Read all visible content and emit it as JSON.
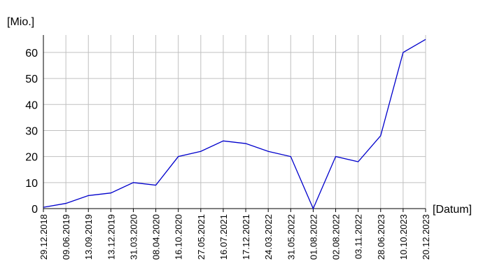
{
  "chart_data": {
    "type": "line",
    "y_label": "[Mio.]",
    "x_label": "[Datum]",
    "categories": [
      "29.12.2018",
      "09.06.2019",
      "13.09.2019",
      "13.12.2019",
      "31.03.2020",
      "08.04.2020",
      "16.10.2020",
      "27.05.2021",
      "16.07.2021",
      "17.12.2021",
      "24.03.2022",
      "31.05.2022",
      "01.08.2022",
      "02.08.2022",
      "03.11.2022",
      "28.06.2023",
      "10.10.2023",
      "20.12.2023"
    ],
    "values": [
      0.5,
      2,
      5,
      6,
      10,
      9,
      20,
      22,
      26,
      25,
      22,
      20,
      0,
      20,
      18,
      28,
      60,
      65
    ],
    "color": "#0000cc",
    "ylim": [
      0,
      66.7
    ],
    "yticks": [
      0,
      10,
      20,
      30,
      40,
      50,
      60
    ],
    "grid": true
  }
}
